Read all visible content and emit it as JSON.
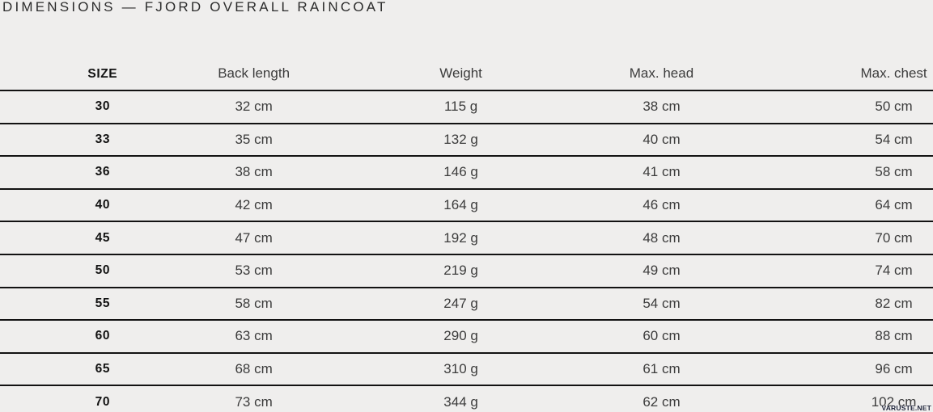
{
  "page": {
    "title": "DIMENSIONS — FJORD OVERALL RAINCOAT",
    "watermark": "VARUSTE.NET",
    "background_color": "#efeeed",
    "line_color": "#121212"
  },
  "chart_data": {
    "type": "table",
    "title": "DIMENSIONS — FJORD OVERALL RAINCOAT",
    "columns": [
      "SIZE",
      "Back length",
      "Weight",
      "Max. head",
      "Max. chest"
    ],
    "rows": [
      [
        "30",
        "32 cm",
        "115 g",
        "38 cm",
        "50 cm"
      ],
      [
        "33",
        "35 cm",
        "132 g",
        "40 cm",
        "54 cm"
      ],
      [
        "36",
        "38 cm",
        "146 g",
        "41 cm",
        "58 cm"
      ],
      [
        "40",
        "42 cm",
        "164 g",
        "46 cm",
        "64 cm"
      ],
      [
        "45",
        "47 cm",
        "192 g",
        "48 cm",
        "70 cm"
      ],
      [
        "50",
        "53 cm",
        "219 g",
        "49 cm",
        "74 cm"
      ],
      [
        "55",
        "58 cm",
        "247 g",
        "54 cm",
        "82 cm"
      ],
      [
        "60",
        "63 cm",
        "290 g",
        "60 cm",
        "88 cm"
      ],
      [
        "65",
        "68 cm",
        "310 g",
        "61 cm",
        "96 cm"
      ],
      [
        "70",
        "73 cm",
        "344 g",
        "62 cm",
        "102 cm"
      ]
    ],
    "layout": {
      "grid": "horizontal-rules-only",
      "header_bold_column": "SIZE",
      "value_alignment": "center"
    }
  }
}
